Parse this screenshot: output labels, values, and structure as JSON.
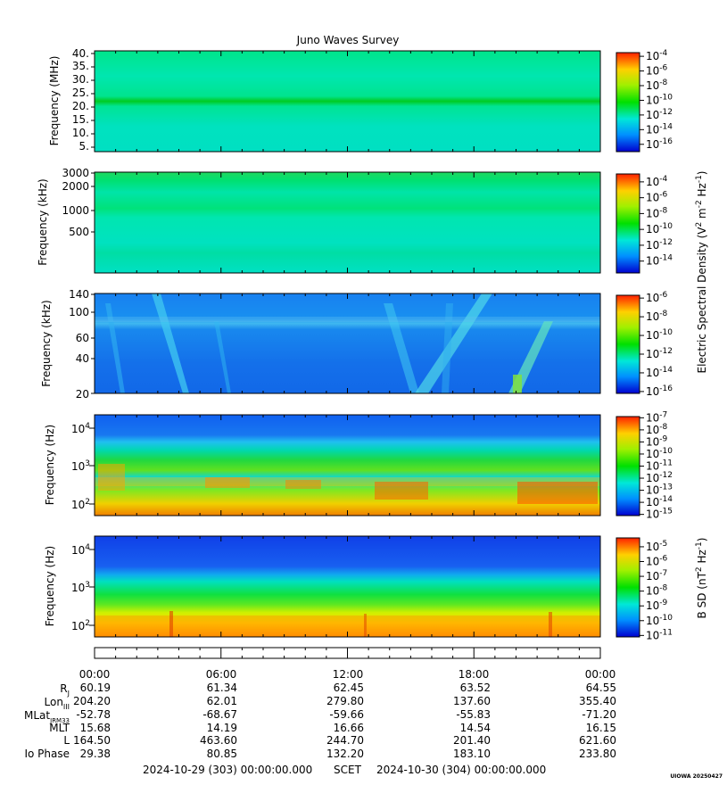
{
  "chart_data": {
    "type": "heatmap",
    "title": "Juno Waves Survey",
    "x_ticks": [
      "00:00",
      "06:00",
      "12:00",
      "18:00",
      "00:00"
    ],
    "panels": [
      {
        "id": "p1",
        "ylabel": "Frequency (MHz)",
        "y_scale": "linear",
        "ylim": [
          3.5,
          41
        ],
        "y_ticks": [
          "40.",
          "35.",
          "30.",
          "25.",
          "20.",
          "15.",
          "10.",
          "5."
        ],
        "y_tick_values": [
          40,
          35,
          30,
          25,
          20,
          15,
          10,
          5
        ],
        "colorbar": {
          "labels": [
            "-4",
            "-6",
            "-8",
            "-10",
            "-12",
            "-14",
            "-16"
          ],
          "exponents": [
            -4,
            -6,
            -8,
            -10,
            -12,
            -14,
            -16
          ],
          "range": [
            -17,
            -3.5
          ]
        }
      },
      {
        "id": "p2",
        "ylabel": "Frequency (kHz)",
        "y_scale": "log",
        "ylim": [
          110,
          3000
        ],
        "y_ticks": [
          "3000",
          "2000",
          "1000",
          "500"
        ],
        "y_tick_values": [
          3000,
          2000,
          1000,
          500
        ],
        "colorbar": {
          "labels": [
            "-4",
            "-6",
            "-8",
            "-10",
            "-12",
            "-14"
          ],
          "exponents": [
            -4,
            -6,
            -8,
            -10,
            -12,
            -14
          ],
          "range": [
            -15.5,
            -3
          ]
        }
      },
      {
        "id": "p3",
        "ylabel": "Frequency (kHz)",
        "y_scale": "log",
        "ylim": [
          20,
          140
        ],
        "y_ticks": [
          "140",
          "100",
          "60",
          "40",
          "20"
        ],
        "y_tick_values": [
          140,
          100,
          60,
          40,
          20
        ],
        "colorbar": {
          "labels": [
            "-6",
            "-8",
            "-10",
            "-12",
            "-14",
            "-16"
          ],
          "exponents": [
            -6,
            -8,
            -10,
            -12,
            -14,
            -16
          ],
          "range": [
            -16.2,
            -5.7
          ]
        }
      },
      {
        "id": "p4",
        "ylabel": "Frequency (Hz)",
        "y_scale": "log",
        "ylim": [
          50,
          22000
        ],
        "y_ticks": [
          "10^4",
          "10^3",
          "10^2"
        ],
        "y_tick_values": [
          10000,
          1000,
          100
        ],
        "colorbar": {
          "labels": [
            "-7",
            "-8",
            "-9",
            "-10",
            "-11",
            "-12",
            "-13",
            "-14",
            "-15"
          ],
          "exponents": [
            -7,
            -8,
            -9,
            -10,
            -11,
            -12,
            -13,
            -14,
            -15
          ],
          "range": [
            -15.1,
            -6.9
          ]
        }
      },
      {
        "id": "p5",
        "ylabel": "Frequency (Hz)",
        "y_scale": "log",
        "ylim": [
          50,
          22000
        ],
        "y_ticks": [
          "10^4",
          "10^3",
          "10^2"
        ],
        "y_tick_values": [
          10000,
          1000,
          100
        ],
        "colorbar": {
          "labels": [
            "-5",
            "-6",
            "-7",
            "-8",
            "-9",
            "-10",
            "-11"
          ],
          "exponents": [
            -5,
            -6,
            -7,
            -8,
            -9,
            -10,
            -11
          ],
          "range": [
            -11.1,
            -4.4
          ]
        }
      }
    ],
    "colorbar_titles": {
      "electric_pre": "Electric Spectral Density (V",
      "electric_sup1": "2",
      "electric_mid": " m",
      "electric_sup2": "-2",
      "electric_mid2": " Hz",
      "electric_sup3": "-1",
      "electric_post": ")",
      "magnetic_pre": "B SD (nT",
      "magnetic_sup1": "2",
      "magnetic_mid": " Hz",
      "magnetic_sup2": "-1",
      "magnetic_post": ")"
    },
    "colorbar_base": "10",
    "ephemeris": {
      "times": [
        "00:00",
        "06:00",
        "12:00",
        "18:00",
        "00:00"
      ],
      "rows": [
        {
          "label": "R",
          "sub": "J",
          "values": [
            "60.19",
            "61.34",
            "62.45",
            "63.52",
            "64.55"
          ]
        },
        {
          "label": "Lon",
          "sub": "III",
          "values": [
            "204.20",
            "62.01",
            "279.80",
            "137.60",
            "355.40"
          ]
        },
        {
          "label": "MLat",
          "sub": "JRM33",
          "values": [
            "-52.78",
            "-68.67",
            "-59.66",
            "-55.83",
            "-71.20"
          ]
        },
        {
          "label": "MLT",
          "sub": "",
          "values": [
            "15.68",
            "14.19",
            "16.66",
            "14.54",
            "16.15"
          ]
        },
        {
          "label": "L",
          "sub": "",
          "values": [
            "164.50",
            "463.60",
            "244.70",
            "201.40",
            "621.60"
          ]
        },
        {
          "label": "Io Phase",
          "sub": "",
          "values": [
            "29.38",
            "80.85",
            "132.20",
            "183.10",
            "233.80"
          ]
        }
      ]
    }
  },
  "footer": {
    "start": "2024-10-29 (303) 00:00:00.000",
    "scet": "SCET",
    "end": "2024-10-30 (304) 00:00:00.000",
    "credit": "UIOWA 20250427"
  }
}
